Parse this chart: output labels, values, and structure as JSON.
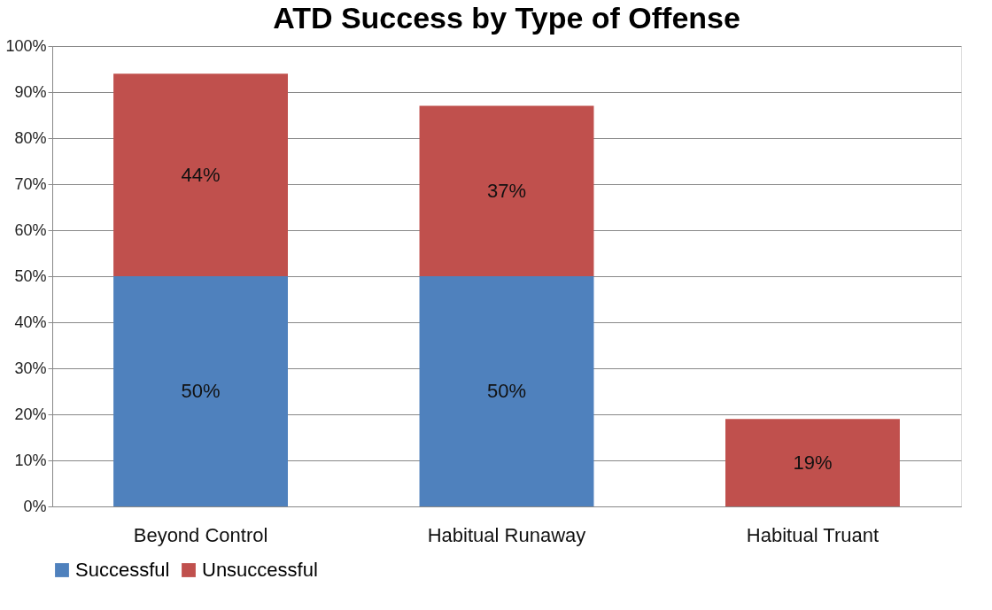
{
  "chart_data": {
    "type": "bar",
    "title": "ATD Success by Type of Offense",
    "categories": [
      "Beyond Control",
      "Habitual Runaway",
      "Habitual Truant"
    ],
    "stacked": true,
    "series": [
      {
        "name": "Successful",
        "color": "#4f81bd",
        "values": [
          50,
          50,
          0
        ],
        "value_labels": [
          "50%",
          "50%",
          null
        ]
      },
      {
        "name": "Unsuccessful",
        "color": "#c0504d",
        "values": [
          44,
          37,
          19
        ],
        "value_labels": [
          "44%",
          "37%",
          "19%"
        ]
      }
    ],
    "ylim": [
      0,
      100
    ],
    "yticks": [
      {
        "value": 0,
        "label": "0%"
      },
      {
        "value": 10,
        "label": "10%"
      },
      {
        "value": 20,
        "label": "20%"
      },
      {
        "value": 30,
        "label": "30%"
      },
      {
        "value": 40,
        "label": "40%"
      },
      {
        "value": 50,
        "label": "50%"
      },
      {
        "value": 60,
        "label": "60%"
      },
      {
        "value": 70,
        "label": "70%"
      },
      {
        "value": 80,
        "label": "80%"
      },
      {
        "value": 90,
        "label": "90%"
      },
      {
        "value": 100,
        "label": "100%"
      }
    ],
    "grid": "y",
    "legend": "bottom"
  }
}
